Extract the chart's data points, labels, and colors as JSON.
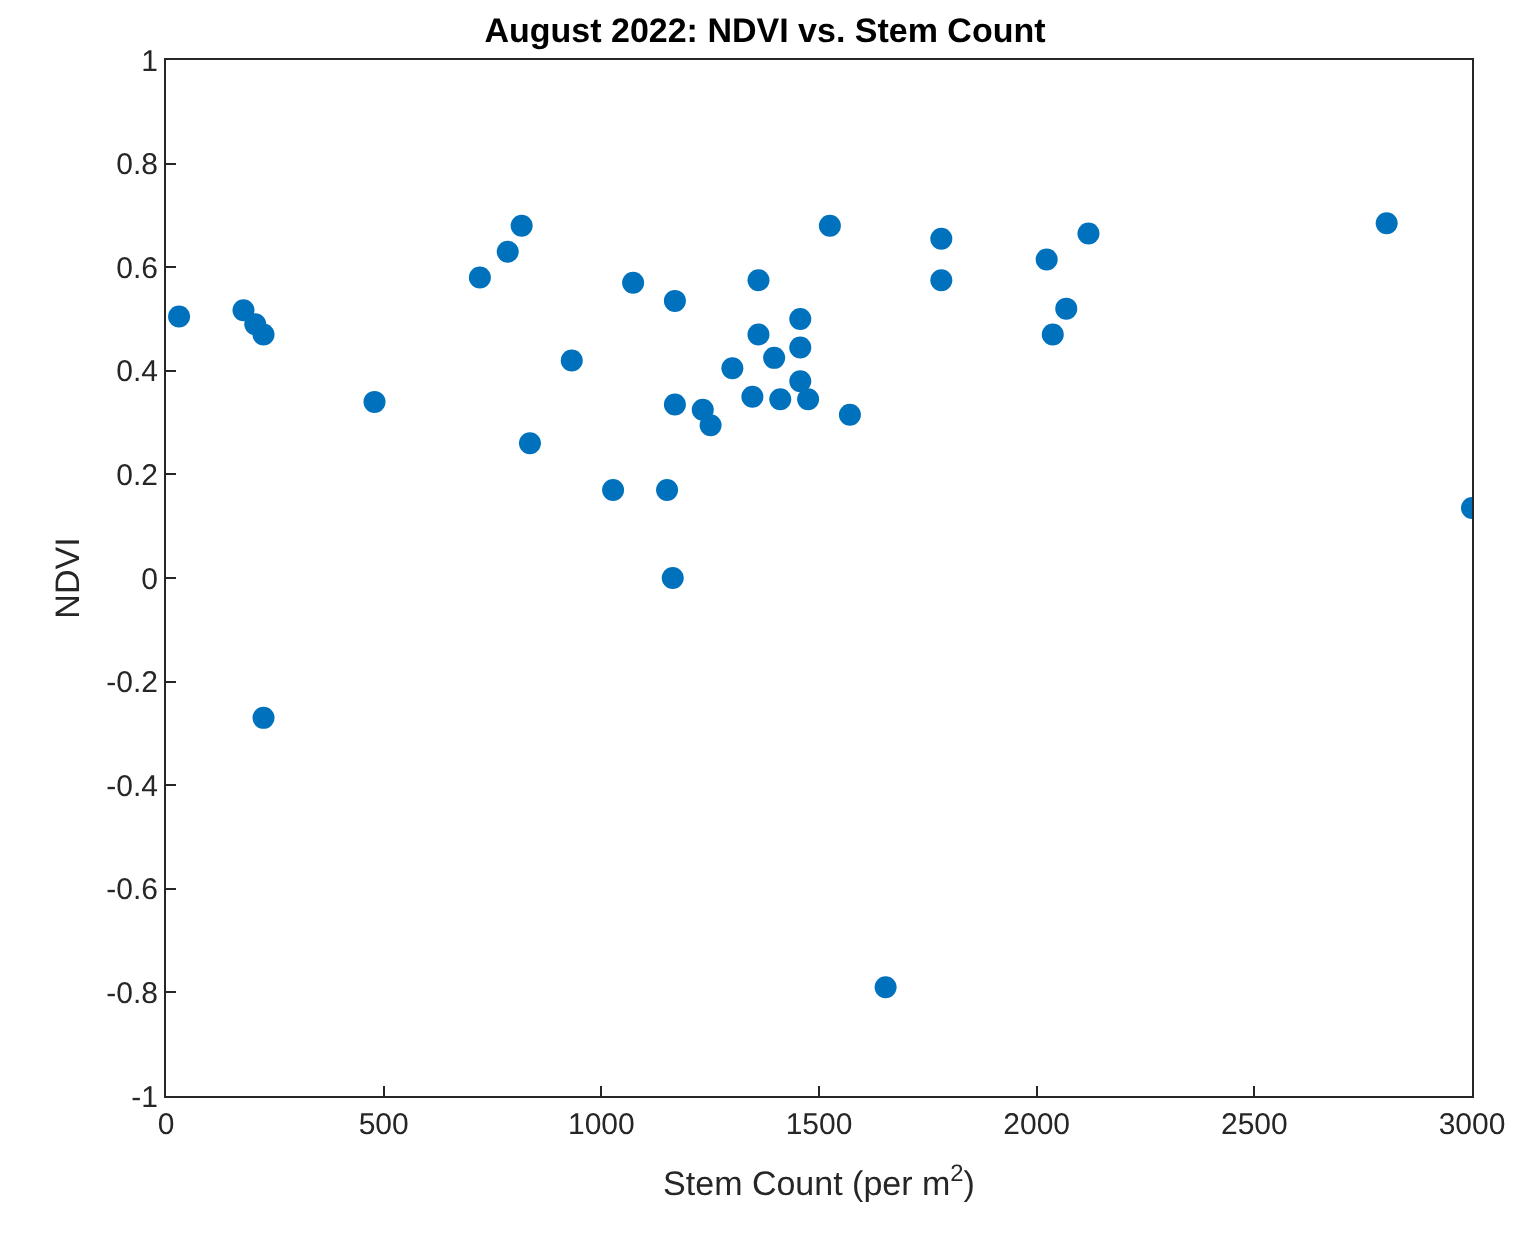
{
  "chart_data": {
    "type": "scatter",
    "title": "August 2022: NDVI vs. Stem Count",
    "xlabel": "Stem Count (per m$^{2}$)",
    "ylabel": "NDVI",
    "x": [
      30,
      178,
      205,
      224,
      224,
      479,
      721,
      785,
      817,
      836,
      932,
      1027,
      1073,
      1151,
      1169,
      1169,
      1164,
      1233,
      1251,
      1301,
      1347,
      1361,
      1361,
      1397,
      1411,
      1457,
      1457,
      1457,
      1475,
      1525,
      1571,
      1653,
      1781,
      1781,
      2023,
      2037,
      2068,
      2119,
      2804,
      3000
    ],
    "series": [
      {
        "color": "#0072bd",
        "values": [
          0.505,
          0.517,
          0.49,
          0.47,
          -0.27,
          0.34,
          0.58,
          0.63,
          0.68,
          0.26,
          0.42,
          0.17,
          0.57,
          0.17,
          0.535,
          0.335,
          0.0,
          0.325,
          0.295,
          0.405,
          0.35,
          0.575,
          0.47,
          0.425,
          0.345,
          0.5,
          0.445,
          0.38,
          0.345,
          0.68,
          0.315,
          -0.79,
          0.655,
          0.575,
          0.615,
          0.47,
          0.52,
          0.665,
          0.685,
          0.135
        ]
      }
    ],
    "xlim": [
      0,
      3000
    ],
    "xticks": [
      0,
      500,
      1000,
      1500,
      2000,
      2500,
      3000
    ],
    "ylim": [
      -1,
      1
    ],
    "yticks": [
      -1,
      -0.8,
      -0.6,
      -0.4,
      -0.2,
      0,
      0.2,
      0.4,
      0.6,
      0.8,
      1
    ],
    "marker": "circle",
    "legend": false
  }
}
